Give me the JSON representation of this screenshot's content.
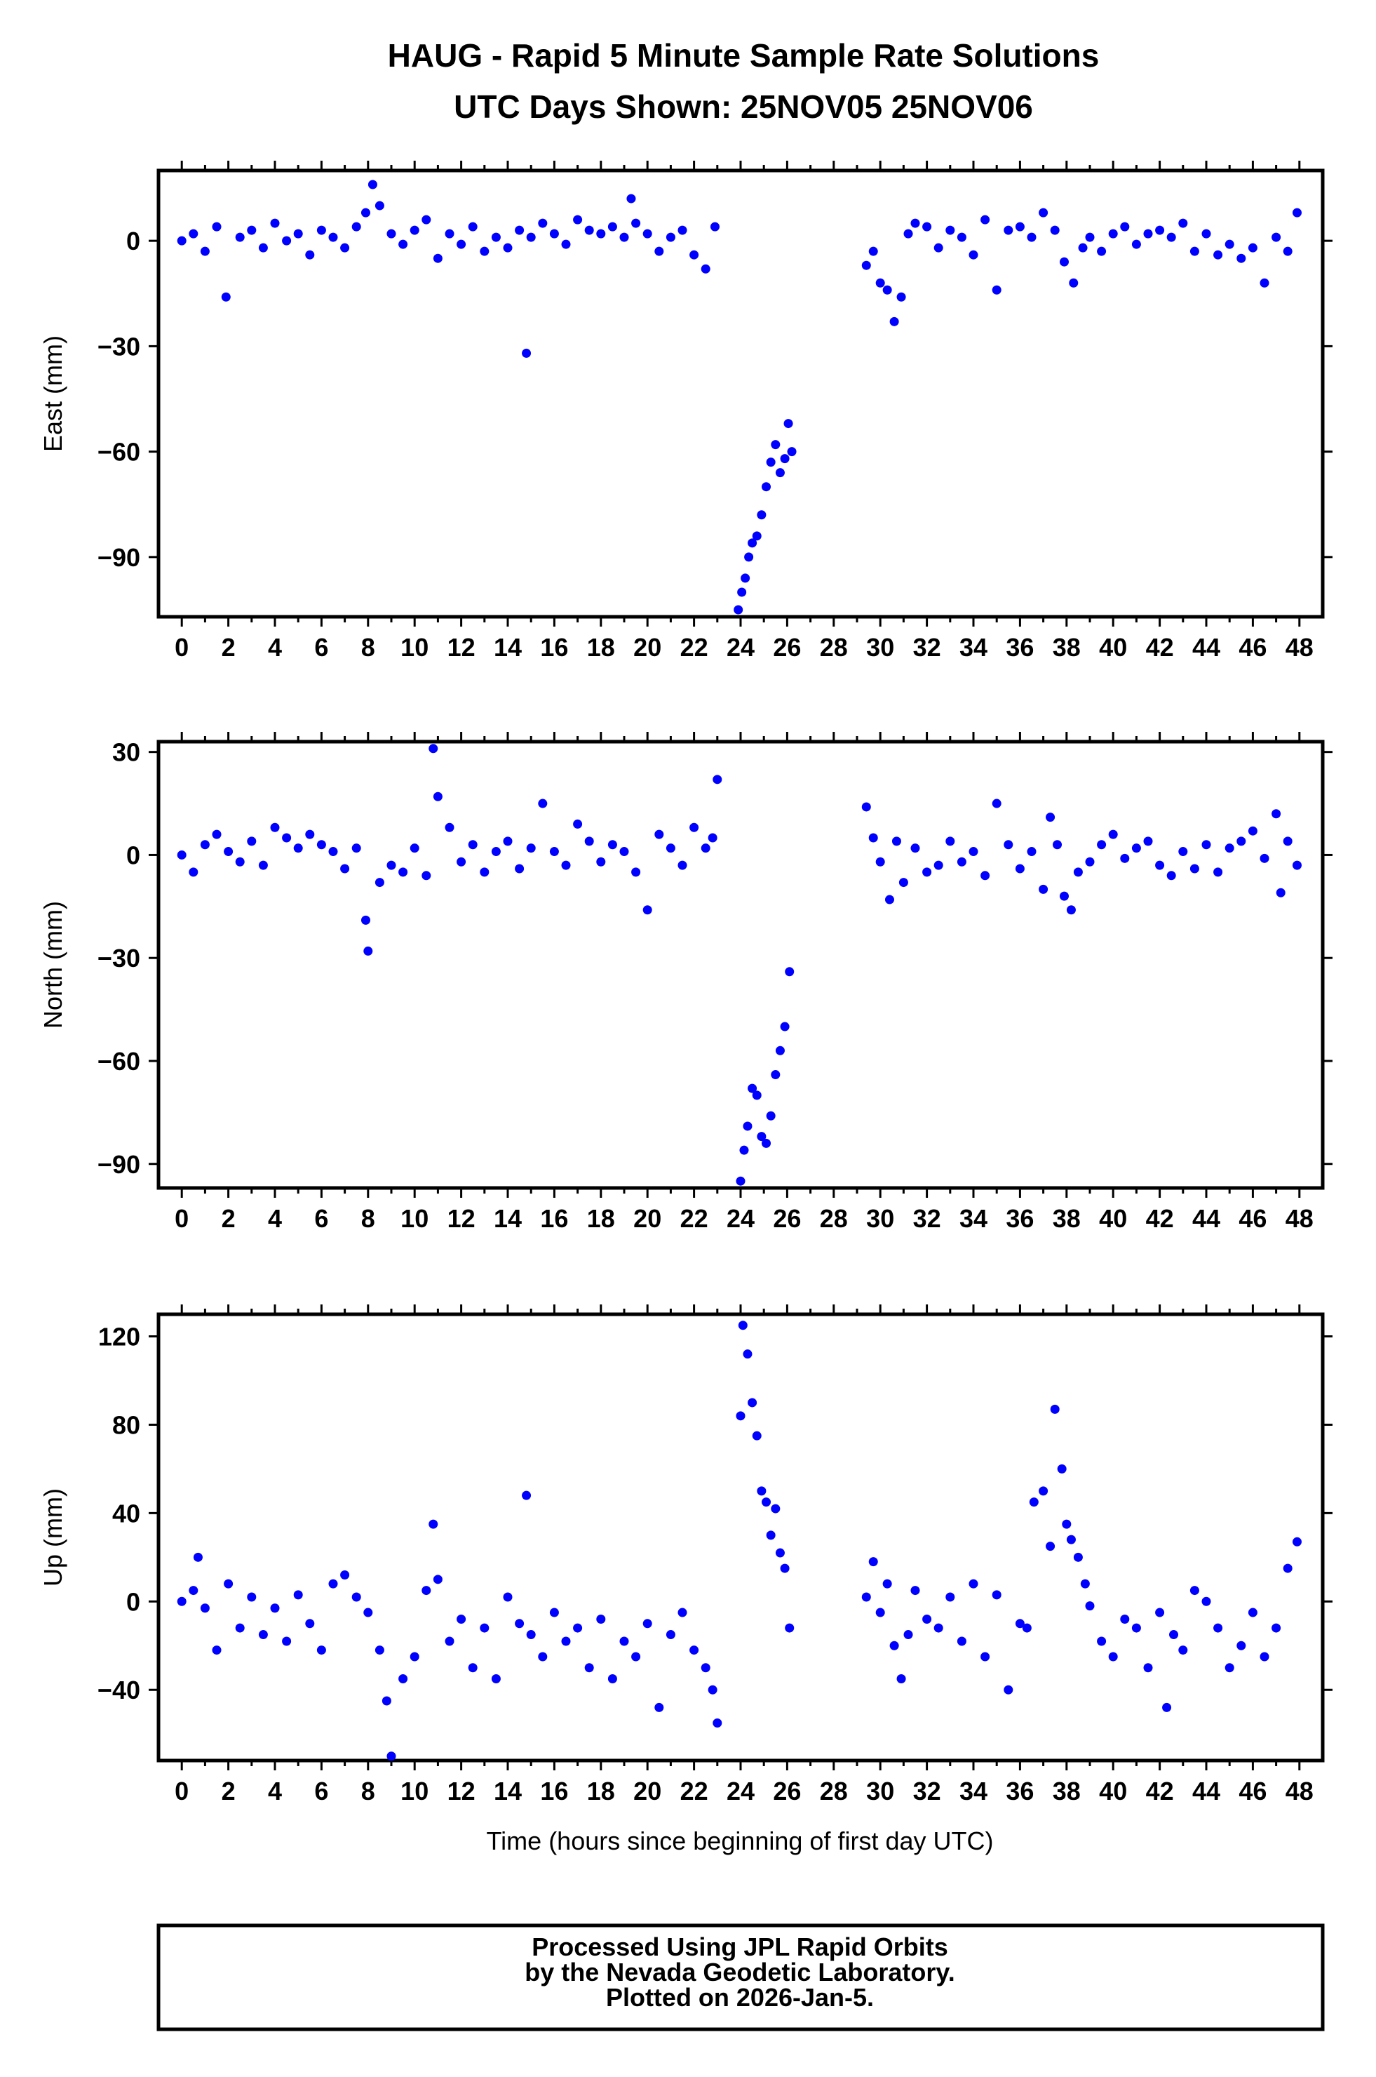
{
  "figure": {
    "title": "HAUG - Rapid 5 Minute Sample Rate Solutions",
    "subtitle": "UTC Days Shown:  25NOV05 25NOV06",
    "xlabel": "Time (hours since beginning of first day UTC)",
    "footer_lines": [
      "Processed Using JPL Rapid Orbits",
      "by the Nevada Geodetic Laboratory.",
      "Plotted on 2026-Jan-5."
    ],
    "point_color": "#0000ff"
  },
  "chart_data": [
    {
      "type": "scatter",
      "ylabel": "East (mm)",
      "xlim": [
        -1,
        49
      ],
      "ylim": [
        -107,
        20
      ],
      "xticks": [
        0,
        2,
        4,
        6,
        8,
        10,
        12,
        14,
        16,
        18,
        20,
        22,
        24,
        26,
        28,
        30,
        32,
        34,
        36,
        38,
        40,
        42,
        44,
        46,
        48
      ],
      "yticks": [
        0,
        -30,
        -60,
        -90
      ],
      "grid": false,
      "series": [
        {
          "x": [
            0,
            0.5,
            1,
            1.5,
            1.9,
            2.5,
            3,
            3.5,
            4,
            4.5,
            5,
            5.5,
            6,
            6.5,
            7,
            7.5,
            7.9,
            8.2,
            8.5,
            9,
            9.5,
            10,
            10.5,
            11,
            11.5,
            12,
            12.5,
            13,
            13.5,
            14,
            14.5,
            14.8,
            15,
            15.5,
            16,
            16.5,
            17,
            17.5,
            18,
            18.5,
            19,
            19.3,
            19.5,
            20,
            20.5,
            21,
            21.5,
            22,
            22.5,
            22.9
          ],
          "y": [
            0,
            2,
            -3,
            4,
            -16,
            1,
            3,
            -2,
            5,
            0,
            2,
            -4,
            3,
            1,
            -2,
            4,
            8,
            16,
            10,
            2,
            -1,
            3,
            6,
            -5,
            2,
            -1,
            4,
            -3,
            1,
            -2,
            3,
            -32,
            1,
            5,
            2,
            -1,
            6,
            3,
            2,
            4,
            1,
            12,
            5,
            2,
            -3,
            1,
            3,
            -4,
            -8,
            4
          ]
        },
        {
          "x": [
            23.9,
            24.05,
            24.2,
            24.35,
            24.5,
            24.7,
            24.9,
            25.1,
            25.3,
            25.5,
            25.7,
            25.9,
            26.05,
            26.2
          ],
          "y": [
            -105,
            -100,
            -96,
            -90,
            -86,
            -84,
            -78,
            -70,
            -63,
            -58,
            -66,
            -62,
            -52,
            -60
          ]
        },
        {
          "x": [
            29.4,
            29.7,
            30,
            30.3,
            30.6,
            30.9,
            31.2,
            31.5,
            32,
            32.5,
            33,
            33.5,
            34,
            34.5,
            35,
            35.5,
            36,
            36.5,
            37,
            37.5,
            37.9,
            38.3,
            38.7,
            39,
            39.5,
            40,
            40.5,
            41,
            41.5,
            42,
            42.5,
            43,
            43.5,
            44,
            44.5,
            45,
            45.5,
            46,
            46.5,
            47,
            47.5,
            47.9
          ],
          "y": [
            -7,
            -3,
            -12,
            -14,
            -23,
            -16,
            2,
            5,
            4,
            -2,
            3,
            1,
            -4,
            6,
            -14,
            3,
            4,
            1,
            8,
            3,
            -6,
            -12,
            -2,
            1,
            -3,
            2,
            4,
            -1,
            2,
            3,
            1,
            5,
            -3,
            2,
            -4,
            -1,
            -5,
            -2,
            -12,
            1,
            -3,
            8
          ]
        }
      ]
    },
    {
      "type": "scatter",
      "ylabel": "North (mm)",
      "xlim": [
        -1,
        49
      ],
      "ylim": [
        -97,
        33
      ],
      "xticks": [
        0,
        2,
        4,
        6,
        8,
        10,
        12,
        14,
        16,
        18,
        20,
        22,
        24,
        26,
        28,
        30,
        32,
        34,
        36,
        38,
        40,
        42,
        44,
        46,
        48
      ],
      "yticks": [
        30,
        0,
        -30,
        -60,
        -90
      ],
      "grid": false,
      "series": [
        {
          "x": [
            0,
            0.5,
            1,
            1.5,
            2,
            2.5,
            3,
            3.5,
            4,
            4.5,
            5,
            5.5,
            6,
            6.5,
            7,
            7.5,
            7.9,
            8,
            8.5,
            9,
            9.5,
            10,
            10.5,
            10.8,
            11,
            11.5,
            12,
            12.5,
            13,
            13.5,
            14,
            14.5,
            15,
            15.5,
            16,
            16.5,
            17,
            17.5,
            18,
            18.5,
            19,
            19.5,
            20,
            20.5,
            21,
            21.5,
            22,
            22.5,
            22.8,
            23
          ],
          "y": [
            0,
            -5,
            3,
            6,
            1,
            -2,
            4,
            -3,
            8,
            5,
            2,
            6,
            3,
            1,
            -4,
            2,
            -19,
            -28,
            -8,
            -3,
            -5,
            2,
            -6,
            31,
            17,
            8,
            -2,
            3,
            -5,
            1,
            4,
            -4,
            2,
            15,
            1,
            -3,
            9,
            4,
            -2,
            3,
            1,
            -5,
            -16,
            6,
            2,
            -3,
            8,
            2,
            5,
            22
          ]
        },
        {
          "x": [
            24,
            24.15,
            24.3,
            24.5,
            24.7,
            24.9,
            25.1,
            25.3,
            25.5,
            25.7,
            25.9,
            26.1
          ],
          "y": [
            -95,
            -86,
            -79,
            -68,
            -70,
            -82,
            -84,
            -76,
            -64,
            -57,
            -50,
            -34
          ]
        },
        {
          "x": [
            29.4,
            29.7,
            30,
            30.4,
            30.7,
            31,
            31.5,
            32,
            32.5,
            33,
            33.5,
            34,
            34.5,
            35,
            35.5,
            36,
            36.5,
            37,
            37.3,
            37.6,
            37.9,
            38.2,
            38.5,
            39,
            39.5,
            40,
            40.5,
            41,
            41.5,
            42,
            42.5,
            43,
            43.5,
            44,
            44.5,
            45,
            45.5,
            46,
            46.5,
            47,
            47.2,
            47.5,
            47.9
          ],
          "y": [
            14,
            5,
            -2,
            -13,
            4,
            -8,
            2,
            -5,
            -3,
            4,
            -2,
            1,
            -6,
            15,
            3,
            -4,
            1,
            -10,
            11,
            3,
            -12,
            -16,
            -5,
            -2,
            3,
            6,
            -1,
            2,
            4,
            -3,
            -6,
            1,
            -4,
            3,
            -5,
            2,
            4,
            7,
            -1,
            12,
            -11,
            4,
            -3
          ]
        }
      ]
    },
    {
      "type": "scatter",
      "ylabel": "Up (mm)",
      "xlim": [
        -1,
        49
      ],
      "ylim": [
        -72,
        130
      ],
      "xticks": [
        0,
        2,
        4,
        6,
        8,
        10,
        12,
        14,
        16,
        18,
        20,
        22,
        24,
        26,
        28,
        30,
        32,
        34,
        36,
        38,
        40,
        42,
        44,
        46,
        48
      ],
      "yticks": [
        120,
        80,
        40,
        0,
        -40
      ],
      "grid": false,
      "series": [
        {
          "x": [
            0,
            0.5,
            0.7,
            1,
            1.5,
            2,
            2.5,
            3,
            3.5,
            4,
            4.5,
            5,
            5.5,
            6,
            6.5,
            7,
            7.5,
            8,
            8.5,
            8.8,
            9,
            9.5,
            10,
            10.5,
            10.8,
            11,
            11.5,
            12,
            12.5,
            13,
            13.5,
            14,
            14.5,
            14.8,
            15,
            15.5,
            16,
            16.5,
            17,
            17.5,
            18,
            18.5,
            19,
            19.5,
            20,
            20.5,
            21,
            21.5,
            22,
            22.5,
            22.8,
            23
          ],
          "y": [
            0,
            5,
            20,
            -3,
            -22,
            8,
            -12,
            2,
            -15,
            -3,
            -18,
            3,
            -10,
            -22,
            8,
            12,
            2,
            -5,
            -22,
            -45,
            -70,
            -35,
            -25,
            5,
            35,
            10,
            -18,
            -8,
            -30,
            -12,
            -35,
            2,
            -10,
            48,
            -15,
            -25,
            -5,
            -18,
            -12,
            -30,
            -8,
            -35,
            -18,
            -25,
            -10,
            -48,
            -15,
            -5,
            -22,
            -30,
            -40,
            -55
          ]
        },
        {
          "x": [
            24,
            24.1,
            24.3,
            24.5,
            24.7,
            24.9,
            25.1,
            25.3,
            25.5,
            25.7,
            25.9,
            26.1
          ],
          "y": [
            84,
            125,
            112,
            90,
            75,
            50,
            45,
            30,
            42,
            22,
            15,
            -12
          ]
        },
        {
          "x": [
            29.4,
            29.7,
            30,
            30.3,
            30.6,
            30.9,
            31.2,
            31.5,
            32,
            32.5,
            33,
            33.5,
            34,
            34.5,
            35,
            35.5,
            36,
            36.3,
            36.6,
            37,
            37.3,
            37.5,
            37.8,
            38,
            38.2,
            38.5,
            38.8,
            39,
            39.5,
            40,
            40.5,
            41,
            41.5,
            42,
            42.3,
            42.6,
            43,
            43.5,
            44,
            44.5,
            45,
            45.5,
            46,
            46.5,
            47,
            47.5,
            47.9
          ],
          "y": [
            2,
            18,
            -5,
            8,
            -20,
            -35,
            -15,
            5,
            -8,
            -12,
            2,
            -18,
            8,
            -25,
            3,
            -40,
            -10,
            -12,
            45,
            50,
            25,
            87,
            60,
            35,
            28,
            20,
            8,
            -2,
            -18,
            -25,
            -8,
            -12,
            -30,
            -5,
            -48,
            -15,
            -22,
            5,
            0,
            -12,
            -30,
            -20,
            -5,
            -25,
            -12,
            15,
            27
          ]
        }
      ]
    }
  ]
}
